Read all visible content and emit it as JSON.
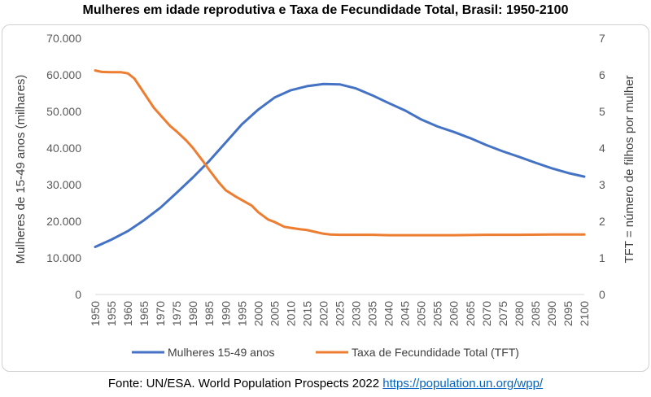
{
  "chart_data": {
    "type": "line",
    "title": "Mulheres em idade reprodutiva e Taxa de Fecundidade Total, Brasil: 1950-2100",
    "ylabel_left": "Mulheres de 15-49 anos (milhares)",
    "ylabel_right": "TFT = número de filhos por mulher",
    "xlabel": "",
    "xlim": [
      1950,
      2100
    ],
    "ylim_left": [
      0,
      70000
    ],
    "ylim_right": [
      0,
      7
    ],
    "x_ticks": [
      "1950",
      "1955",
      "1960",
      "1965",
      "1970",
      "1975",
      "1980",
      "1985",
      "1990",
      "1995",
      "2000",
      "2005",
      "2010",
      "2015",
      "2020",
      "2025",
      "2030",
      "2035",
      "2040",
      "2045",
      "2050",
      "2055",
      "2060",
      "2065",
      "2070",
      "2075",
      "2080",
      "2085",
      "2090",
      "2095",
      "2100"
    ],
    "y_ticks_left": [
      "0",
      "10.000",
      "20.000",
      "30.000",
      "40.000",
      "50.000",
      "60.000",
      "70.000"
    ],
    "y_ticks_right": [
      "0",
      "1",
      "2",
      "3",
      "4",
      "5",
      "6",
      "7"
    ],
    "grid": false,
    "legend_position": "bottom",
    "series": [
      {
        "name": "Mulheres 15-49 anos",
        "axis": "left",
        "color": "#4472c4",
        "x": [
          1950,
          1955,
          1960,
          1965,
          1970,
          1975,
          1980,
          1985,
          1990,
          1995,
          2000,
          2005,
          2010,
          2015,
          2020,
          2025,
          2030,
          2035,
          2040,
          2045,
          2050,
          2055,
          2060,
          2065,
          2070,
          2075,
          2080,
          2085,
          2090,
          2095,
          2100
        ],
        "values": [
          13000,
          15000,
          17300,
          20300,
          23700,
          27800,
          32000,
          36500,
          41500,
          46500,
          50500,
          53800,
          55800,
          56900,
          57500,
          57400,
          56300,
          54400,
          52300,
          50300,
          47800,
          45900,
          44400,
          42700,
          40800,
          39100,
          37600,
          36000,
          34500,
          33200,
          32200
        ]
      },
      {
        "name": "Taxa de Fecundidade Total (TFT)",
        "axis": "right",
        "color": "#ed7d31",
        "x": [
          1950,
          1952,
          1955,
          1958,
          1960,
          1962,
          1965,
          1968,
          1970,
          1973,
          1975,
          1978,
          1980,
          1983,
          1985,
          1988,
          1990,
          1993,
          1995,
          1998,
          2000,
          2003,
          2005,
          2008,
          2010,
          2013,
          2015,
          2017,
          2020,
          2022,
          2025,
          2030,
          2035,
          2040,
          2045,
          2050,
          2055,
          2060,
          2070,
          2080,
          2090,
          2095,
          2100
        ],
        "values": [
          6.12,
          6.08,
          6.07,
          6.07,
          6.04,
          5.9,
          5.5,
          5.1,
          4.9,
          4.6,
          4.45,
          4.2,
          4.0,
          3.65,
          3.4,
          3.05,
          2.85,
          2.68,
          2.58,
          2.43,
          2.25,
          2.05,
          1.98,
          1.85,
          1.82,
          1.78,
          1.76,
          1.72,
          1.66,
          1.64,
          1.63,
          1.63,
          1.63,
          1.62,
          1.62,
          1.62,
          1.62,
          1.62,
          1.63,
          1.63,
          1.64,
          1.64,
          1.64
        ]
      }
    ]
  },
  "source": {
    "text": "Fonte: UN/ESA. World Population Prospects 2022 ",
    "link": "https://population.un.org/wpp/"
  }
}
